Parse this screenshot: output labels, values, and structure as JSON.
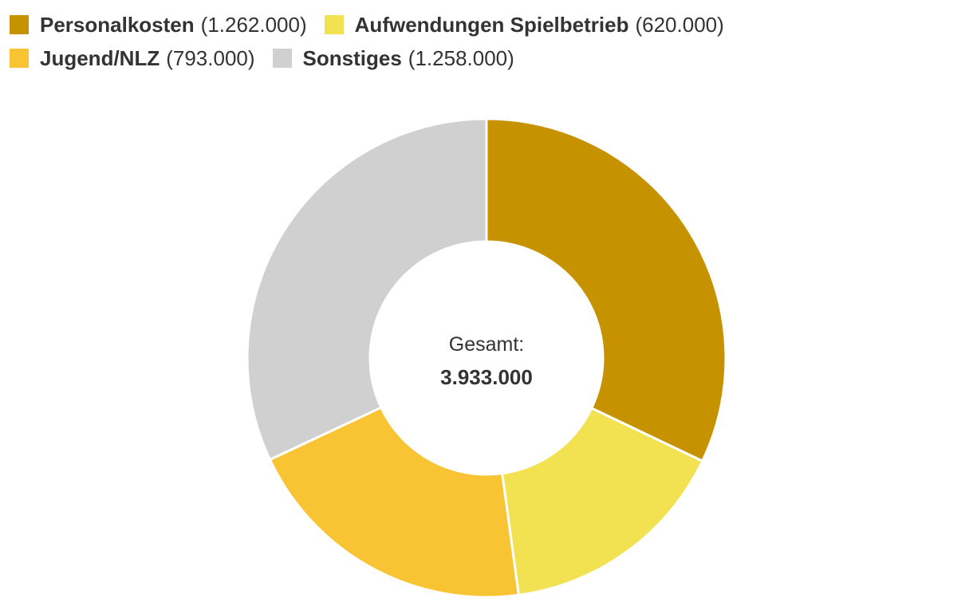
{
  "chart_data": {
    "type": "pie",
    "variant": "donut",
    "slices": [
      {
        "name": "Personalkosten",
        "value": 1262000,
        "value_label": "1.262.000",
        "color": "#C69200"
      },
      {
        "name": "Aufwendungen Spielbetrieb",
        "value": 620000,
        "value_label": "620.000",
        "color": "#F2E252"
      },
      {
        "name": "Jugend/NLZ",
        "value": 793000,
        "value_label": "793.000",
        "color": "#F9C433"
      },
      {
        "name": "Sonstiges",
        "value": 1258000,
        "value_label": "1.258.000",
        "color": "#D0D0D0"
      }
    ],
    "center_label": "Gesamt:",
    "center_value": "3.933.000",
    "legend_position": "top-left"
  }
}
